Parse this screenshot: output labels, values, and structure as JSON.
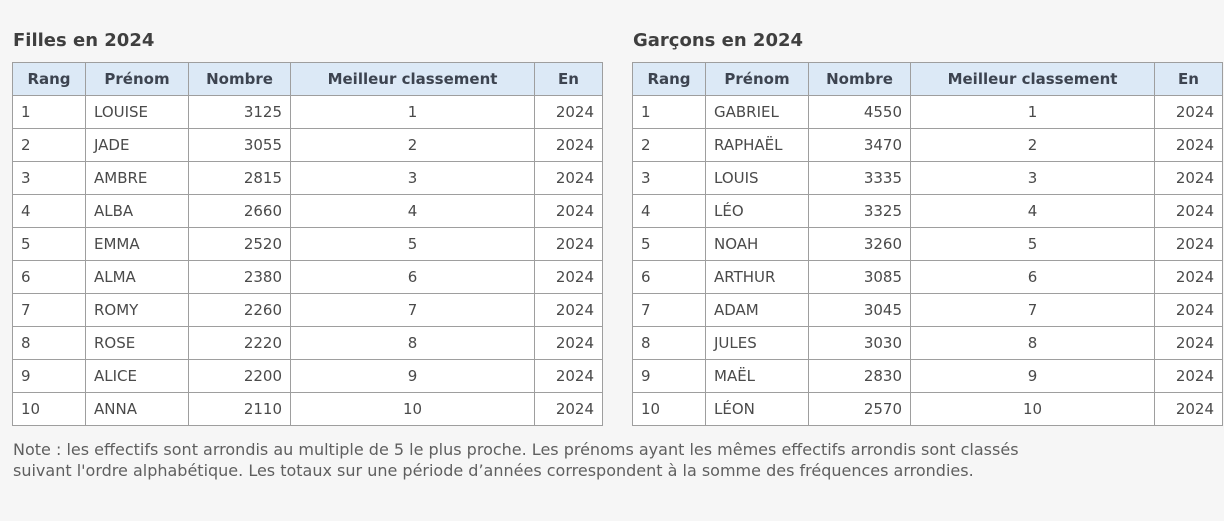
{
  "colors": {
    "page_background": "#f6f6f6",
    "header_background": "#dce9f6",
    "table_border": "#9e9e9e",
    "cell_text": "#4a4a4a",
    "title_text": "#3f3f3f"
  },
  "tables": [
    {
      "title": "Filles en 2024",
      "headers": [
        "Rang",
        "Prénom",
        "Nombre",
        "Meilleur classement",
        "En"
      ],
      "rows": [
        [
          "1",
          "LOUISE",
          "3125",
          "1",
          "2024"
        ],
        [
          "2",
          "JADE",
          "3055",
          "2",
          "2024"
        ],
        [
          "3",
          "AMBRE",
          "2815",
          "3",
          "2024"
        ],
        [
          "4",
          "ALBA",
          "2660",
          "4",
          "2024"
        ],
        [
          "5",
          "EMMA",
          "2520",
          "5",
          "2024"
        ],
        [
          "6",
          "ALMA",
          "2380",
          "6",
          "2024"
        ],
        [
          "7",
          "ROMY",
          "2260",
          "7",
          "2024"
        ],
        [
          "8",
          "ROSE",
          "2220",
          "8",
          "2024"
        ],
        [
          "9",
          "ALICE",
          "2200",
          "9",
          "2024"
        ],
        [
          "10",
          "ANNA",
          "2110",
          "10",
          "2024"
        ]
      ]
    },
    {
      "title": "Garçons en 2024",
      "headers": [
        "Rang",
        "Prénom",
        "Nombre",
        "Meilleur classement",
        "En"
      ],
      "rows": [
        [
          "1",
          "GABRIEL",
          "4550",
          "1",
          "2024"
        ],
        [
          "2",
          "RAPHAËL",
          "3470",
          "2",
          "2024"
        ],
        [
          "3",
          "LOUIS",
          "3335",
          "3",
          "2024"
        ],
        [
          "4",
          "LÉO",
          "3325",
          "4",
          "2024"
        ],
        [
          "5",
          "NOAH",
          "3260",
          "5",
          "2024"
        ],
        [
          "6",
          "ARTHUR",
          "3085",
          "6",
          "2024"
        ],
        [
          "7",
          "ADAM",
          "3045",
          "7",
          "2024"
        ],
        [
          "8",
          "JULES",
          "3030",
          "8",
          "2024"
        ],
        [
          "9",
          "MAËL",
          "2830",
          "9",
          "2024"
        ],
        [
          "10",
          "LÉON",
          "2570",
          "10",
          "2024"
        ]
      ]
    }
  ],
  "note": {
    "text": "Note : les effectifs sont arrondis au multiple de 5 le plus proche. Les prénoms ayant les mêmes effectifs arrondis sont classés suivant l'ordre alphabétique. Les totaux sur une période d’années correspondent à la somme des fréquences arrondies."
  }
}
